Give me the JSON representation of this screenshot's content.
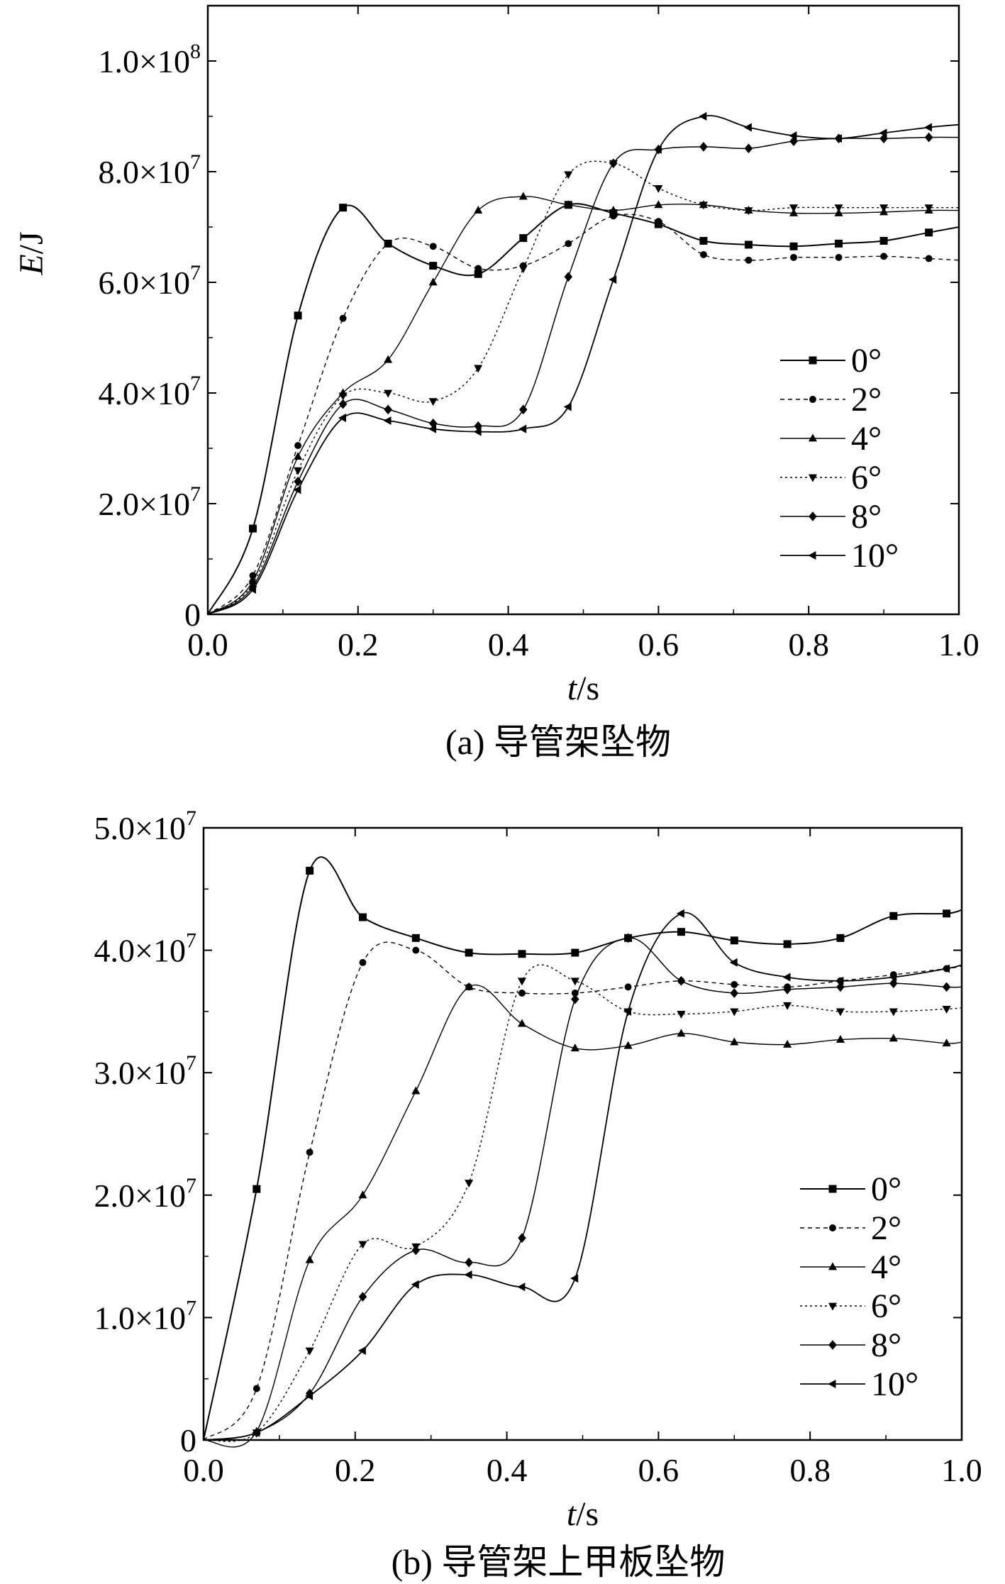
{
  "chart_data": [
    {
      "type": "line",
      "caption": "(a) 导管架坠物",
      "xlabel_var": "t",
      "xlabel_unit": "/s",
      "ylabel_var": "E",
      "ylabel_unit": "/J",
      "xlim": [
        0,
        1.0
      ],
      "ylim": [
        0,
        110000000
      ],
      "xticks": [
        0,
        0.2,
        0.4,
        0.6,
        0.8,
        1.0
      ],
      "xtick_labels": [
        "0.0",
        "0.2",
        "0.4",
        "0.6",
        "0.8",
        "1.0"
      ],
      "yticks": [
        0,
        20000000,
        40000000,
        60000000,
        80000000,
        100000000
      ],
      "ytick_labels": [
        {
          "mant": "0",
          "exp": ""
        },
        {
          "mant": "2.0×10",
          "exp": "7"
        },
        {
          "mant": "4.0×10",
          "exp": "7"
        },
        {
          "mant": "6.0×10",
          "exp": "7"
        },
        {
          "mant": "8.0×10",
          "exp": "7"
        },
        {
          "mant": "1.0×10",
          "exp": "8"
        }
      ],
      "legend_position": "bottom-right",
      "series": [
        {
          "name": "0°",
          "marker": "square",
          "x": [
            0,
            0.06,
            0.12,
            0.18,
            0.24,
            0.3,
            0.36,
            0.42,
            0.48,
            0.54,
            0.6,
            0.66,
            0.72,
            0.78,
            0.84,
            0.9,
            0.96,
            1.0
          ],
          "y": [
            0,
            15500000,
            54000000,
            73500000,
            67000000,
            63000000,
            61500000,
            68000000,
            74000000,
            72500000,
            70500000,
            67500000,
            66800000,
            66500000,
            67000000,
            67500000,
            69000000,
            70000000
          ]
        },
        {
          "name": "2°",
          "marker": "circle",
          "x": [
            0,
            0.06,
            0.12,
            0.18,
            0.24,
            0.3,
            0.36,
            0.42,
            0.48,
            0.54,
            0.6,
            0.66,
            0.72,
            0.78,
            0.84,
            0.9,
            0.96,
            1.0
          ],
          "y": [
            0,
            7000000,
            30500000,
            53500000,
            67000000,
            66500000,
            62500000,
            63000000,
            67000000,
            72000000,
            71000000,
            65000000,
            64000000,
            64500000,
            64500000,
            64700000,
            64300000,
            64000000
          ]
        },
        {
          "name": "4°",
          "marker": "triangle-up",
          "x": [
            0,
            0.06,
            0.12,
            0.18,
            0.24,
            0.3,
            0.36,
            0.42,
            0.48,
            0.54,
            0.6,
            0.66,
            0.72,
            0.78,
            0.84,
            0.9,
            0.96,
            1.0
          ],
          "y": [
            0,
            6000000,
            28500000,
            40000000,
            46000000,
            60000000,
            73000000,
            75500000,
            74000000,
            73000000,
            74000000,
            74000000,
            73000000,
            72500000,
            72500000,
            72700000,
            73000000,
            73000000
          ]
        },
        {
          "name": "6°",
          "marker": "triangle-down",
          "x": [
            0,
            0.06,
            0.12,
            0.18,
            0.24,
            0.3,
            0.36,
            0.42,
            0.48,
            0.54,
            0.6,
            0.66,
            0.72,
            0.78,
            0.84,
            0.9,
            0.96,
            1.0
          ],
          "y": [
            0,
            5500000,
            26000000,
            39500000,
            40000000,
            38500000,
            44500000,
            62500000,
            79500000,
            81500000,
            77000000,
            74000000,
            73000000,
            73500000,
            73500000,
            73500000,
            73500000,
            73500000
          ]
        },
        {
          "name": "8°",
          "marker": "diamond",
          "x": [
            0,
            0.06,
            0.12,
            0.18,
            0.24,
            0.3,
            0.36,
            0.42,
            0.48,
            0.54,
            0.6,
            0.66,
            0.72,
            0.78,
            0.84,
            0.9,
            0.96,
            1.0
          ],
          "y": [
            0,
            5000000,
            24000000,
            38000000,
            37000000,
            34500000,
            34000000,
            37000000,
            61000000,
            81500000,
            84000000,
            84500000,
            84200000,
            85500000,
            86000000,
            86000000,
            86200000,
            86200000
          ]
        },
        {
          "name": "10°",
          "marker": "triangle-left",
          "x": [
            0,
            0.06,
            0.12,
            0.18,
            0.24,
            0.3,
            0.36,
            0.42,
            0.48,
            0.54,
            0.6,
            0.66,
            0.72,
            0.78,
            0.84,
            0.9,
            0.96,
            1.0
          ],
          "y": [
            0,
            4500000,
            22500000,
            35500000,
            35000000,
            33500000,
            33000000,
            33500000,
            37500000,
            60500000,
            84000000,
            90000000,
            88000000,
            86500000,
            86000000,
            87000000,
            88000000,
            88500000
          ]
        }
      ]
    },
    {
      "type": "line",
      "caption": "(b) 导管架上甲板坠物",
      "xlabel_var": "t",
      "xlabel_unit": "/s",
      "ylabel_var": "",
      "ylabel_unit": "",
      "xlim": [
        0,
        1.0
      ],
      "ylim": [
        0,
        50000000
      ],
      "xticks": [
        0,
        0.2,
        0.4,
        0.6,
        0.8,
        1.0
      ],
      "xtick_labels": [
        "0.0",
        "0.2",
        "0.4",
        "0.6",
        "0.8",
        "1.0"
      ],
      "yticks": [
        0,
        10000000,
        20000000,
        30000000,
        40000000,
        50000000
      ],
      "ytick_labels": [
        {
          "mant": "0",
          "exp": ""
        },
        {
          "mant": "1.0×10",
          "exp": "7"
        },
        {
          "mant": "2.0×10",
          "exp": "7"
        },
        {
          "mant": "3.0×10",
          "exp": "7"
        },
        {
          "mant": "4.0×10",
          "exp": "7"
        },
        {
          "mant": "5.0×10",
          "exp": "7"
        }
      ],
      "legend_position": "bottom-right",
      "series": [
        {
          "name": "0°",
          "marker": "square",
          "x": [
            0,
            0.07,
            0.14,
            0.21,
            0.28,
            0.35,
            0.42,
            0.49,
            0.56,
            0.63,
            0.7,
            0.77,
            0.84,
            0.91,
            0.98,
            1.0
          ],
          "y": [
            0,
            20500000,
            46500000,
            42700000,
            41000000,
            39800000,
            39700000,
            39800000,
            41000000,
            41500000,
            40800000,
            40500000,
            41000000,
            42800000,
            43000000,
            43300000
          ]
        },
        {
          "name": "2°",
          "marker": "circle",
          "x": [
            0,
            0.07,
            0.14,
            0.21,
            0.28,
            0.35,
            0.42,
            0.49,
            0.56,
            0.63,
            0.7,
            0.77,
            0.84,
            0.91,
            0.98,
            1.0
          ],
          "y": [
            0,
            4200000,
            23500000,
            39000000,
            40000000,
            37000000,
            36500000,
            36500000,
            37000000,
            37500000,
            37200000,
            37000000,
            37500000,
            38000000,
            38500000,
            38700000
          ]
        },
        {
          "name": "4°",
          "marker": "triangle-up",
          "x": [
            0,
            0.07,
            0.14,
            0.21,
            0.28,
            0.35,
            0.42,
            0.49,
            0.56,
            0.63,
            0.7,
            0.77,
            0.84,
            0.91,
            0.98,
            1.0
          ],
          "y": [
            0,
            700000,
            14700000,
            20000000,
            28500000,
            37000000,
            34000000,
            32000000,
            32200000,
            33200000,
            32500000,
            32300000,
            32700000,
            32800000,
            32400000,
            32500000
          ]
        },
        {
          "name": "6°",
          "marker": "triangle-down",
          "x": [
            0,
            0.07,
            0.14,
            0.21,
            0.28,
            0.35,
            0.42,
            0.49,
            0.56,
            0.63,
            0.7,
            0.77,
            0.84,
            0.91,
            0.98,
            1.0
          ],
          "y": [
            0,
            600000,
            7300000,
            16000000,
            15800000,
            21000000,
            37500000,
            37500000,
            35000000,
            34800000,
            35000000,
            35500000,
            35000000,
            35000000,
            35200000,
            35300000
          ]
        },
        {
          "name": "8°",
          "marker": "diamond",
          "x": [
            0,
            0.07,
            0.14,
            0.21,
            0.28,
            0.35,
            0.42,
            0.49,
            0.56,
            0.63,
            0.7,
            0.77,
            0.84,
            0.91,
            0.98,
            1.0
          ],
          "y": [
            0,
            600000,
            3800000,
            11700000,
            15500000,
            14500000,
            16500000,
            36000000,
            41000000,
            37500000,
            36500000,
            36800000,
            37000000,
            37300000,
            37000000,
            37000000
          ]
        },
        {
          "name": "10°",
          "marker": "triangle-left",
          "x": [
            0,
            0.07,
            0.14,
            0.21,
            0.28,
            0.35,
            0.42,
            0.49,
            0.56,
            0.63,
            0.7,
            0.77,
            0.84,
            0.91,
            0.98,
            1.0
          ],
          "y": [
            0,
            600000,
            3600000,
            7300000,
            12700000,
            13500000,
            12500000,
            13200000,
            35000000,
            43000000,
            39000000,
            37800000,
            37500000,
            37800000,
            38500000,
            38800000
          ]
        }
      ]
    }
  ]
}
